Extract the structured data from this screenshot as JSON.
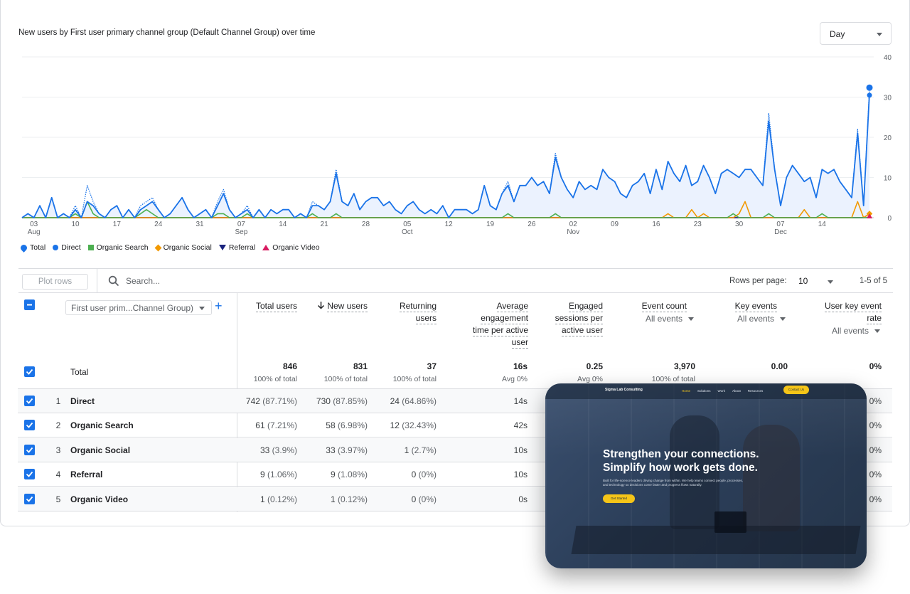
{
  "chart": {
    "title": "New users by First user primary channel group (Default Channel Group) over time",
    "period_select": "Day",
    "y_ticks": [
      "40",
      "30",
      "20",
      "10",
      "0"
    ],
    "x_ticks": [
      {
        "day": "03",
        "month": "Aug"
      },
      {
        "day": "10",
        "month": ""
      },
      {
        "day": "17",
        "month": ""
      },
      {
        "day": "24",
        "month": ""
      },
      {
        "day": "31",
        "month": ""
      },
      {
        "day": "07",
        "month": "Sep"
      },
      {
        "day": "14",
        "month": ""
      },
      {
        "day": "21",
        "month": ""
      },
      {
        "day": "28",
        "month": ""
      },
      {
        "day": "05",
        "month": "Oct"
      },
      {
        "day": "12",
        "month": ""
      },
      {
        "day": "19",
        "month": ""
      },
      {
        "day": "26",
        "month": ""
      },
      {
        "day": "02",
        "month": "Nov"
      },
      {
        "day": "09",
        "month": ""
      },
      {
        "day": "16",
        "month": ""
      },
      {
        "day": "23",
        "month": ""
      },
      {
        "day": "30",
        "month": ""
      },
      {
        "day": "07",
        "month": "Dec"
      },
      {
        "day": "14",
        "month": ""
      }
    ],
    "legend": [
      {
        "label": "Total",
        "color": "#1a73e8",
        "shape": "pin"
      },
      {
        "label": "Direct",
        "color": "#1a73e8",
        "shape": "circle"
      },
      {
        "label": "Organic Search",
        "color": "#4caf50",
        "shape": "square"
      },
      {
        "label": "Organic Social",
        "color": "#f29900",
        "shape": "diamond"
      },
      {
        "label": "Referral",
        "color": "#1a237e",
        "shape": "triangle-down"
      },
      {
        "label": "Organic Video",
        "color": "#d81b60",
        "shape": "triangle-up"
      }
    ]
  },
  "chart_data": {
    "type": "line",
    "x_start": "2024-08-01",
    "ylim": [
      0,
      40
    ],
    "series": [
      {
        "name": "Total",
        "color": "#1a73e8",
        "style": "dotted",
        "values": [
          0,
          1,
          0,
          3,
          0,
          5,
          0,
          1,
          0,
          3,
          0,
          8,
          4,
          1,
          0,
          2,
          3,
          0,
          2,
          0,
          3,
          4,
          5,
          2,
          0,
          1,
          3,
          5,
          2,
          0,
          1,
          2,
          0,
          4,
          7,
          2,
          0,
          1,
          3,
          0,
          2,
          0,
          2,
          1,
          2,
          2,
          0,
          1,
          0,
          4,
          3,
          2,
          4,
          12,
          4,
          3,
          6,
          2,
          4,
          5,
          5,
          3,
          4,
          2,
          1,
          3,
          4,
          2,
          1,
          2,
          1,
          3,
          0,
          2,
          2,
          2,
          1,
          2,
          8,
          3,
          2,
          6,
          9,
          4,
          8,
          8,
          10,
          8,
          9,
          6,
          16,
          10,
          7,
          5,
          9,
          7,
          8,
          7,
          12,
          10,
          9,
          6,
          5,
          8,
          9,
          11,
          6,
          12,
          7,
          14,
          11,
          9,
          13,
          8,
          9,
          13,
          10,
          6,
          11,
          12,
          11,
          10,
          12,
          12,
          10,
          8,
          26,
          12,
          3,
          10,
          13,
          11,
          9,
          10,
          5,
          12,
          11,
          12,
          9,
          7,
          5,
          22,
          3,
          32
        ]
      },
      {
        "name": "Direct",
        "color": "#1a73e8",
        "style": "solid",
        "values": [
          0,
          1,
          0,
          3,
          0,
          5,
          0,
          1,
          0,
          2,
          0,
          4,
          3,
          1,
          0,
          2,
          3,
          0,
          2,
          0,
          2,
          3,
          4,
          2,
          0,
          1,
          3,
          5,
          2,
          0,
          1,
          2,
          0,
          3,
          6,
          2,
          0,
          1,
          2,
          0,
          2,
          0,
          2,
          1,
          2,
          2,
          0,
          1,
          0,
          3,
          3,
          2,
          4,
          11,
          4,
          3,
          6,
          2,
          4,
          5,
          5,
          3,
          4,
          2,
          1,
          3,
          4,
          2,
          1,
          2,
          1,
          3,
          0,
          2,
          2,
          2,
          1,
          2,
          8,
          3,
          2,
          6,
          8,
          4,
          8,
          8,
          10,
          8,
          9,
          6,
          15,
          10,
          7,
          5,
          9,
          7,
          8,
          7,
          12,
          10,
          9,
          6,
          5,
          8,
          9,
          11,
          6,
          12,
          7,
          14,
          11,
          9,
          13,
          8,
          9,
          13,
          10,
          6,
          11,
          12,
          11,
          10,
          12,
          12,
          10,
          8,
          24,
          12,
          3,
          10,
          13,
          11,
          9,
          10,
          5,
          12,
          11,
          12,
          9,
          7,
          5,
          21,
          3,
          31
        ]
      },
      {
        "name": "Organic Search",
        "color": "#4caf50",
        "style": "solid",
        "values": [
          0,
          0,
          0,
          0,
          0,
          0,
          0,
          0,
          0,
          1,
          0,
          4,
          1,
          0,
          0,
          0,
          0,
          0,
          0,
          0,
          1,
          2,
          1,
          0,
          0,
          0,
          0,
          0,
          0,
          0,
          0,
          0,
          0,
          1,
          1,
          0,
          0,
          0,
          1,
          0,
          0,
          0,
          0,
          0,
          0,
          0,
          0,
          0,
          0,
          1,
          0,
          0,
          0,
          1,
          0,
          0,
          0,
          0,
          0,
          0,
          0,
          0,
          0,
          0,
          0,
          0,
          0,
          0,
          0,
          0,
          0,
          0,
          0,
          0,
          0,
          0,
          0,
          0,
          0,
          0,
          0,
          0,
          1,
          0,
          0,
          0,
          0,
          0,
          0,
          0,
          1,
          0,
          0,
          0,
          0,
          0,
          0,
          0,
          0,
          0,
          0,
          0,
          0,
          0,
          0,
          0,
          0,
          0,
          0,
          0,
          0,
          0,
          0,
          0,
          0,
          0,
          0,
          0,
          0,
          0,
          1,
          0,
          0,
          0,
          0,
          0,
          1,
          0,
          0,
          0,
          0,
          0,
          0,
          0,
          0,
          1,
          0,
          0,
          0,
          0,
          0,
          0,
          0,
          0
        ]
      },
      {
        "name": "Organic Social",
        "color": "#f29900",
        "style": "solid",
        "values": [
          0,
          0,
          0,
          0,
          0,
          0,
          0,
          0,
          0,
          0,
          0,
          0,
          0,
          0,
          0,
          0,
          0,
          0,
          0,
          0,
          0,
          0,
          0,
          0,
          0,
          0,
          0,
          0,
          0,
          0,
          0,
          0,
          0,
          0,
          0,
          0,
          0,
          0,
          0,
          0,
          0,
          0,
          0,
          0,
          0,
          0,
          0,
          0,
          0,
          0,
          0,
          0,
          0,
          0,
          0,
          0,
          0,
          0,
          0,
          0,
          0,
          0,
          0,
          0,
          0,
          0,
          0,
          0,
          0,
          0,
          0,
          0,
          0,
          0,
          0,
          0,
          0,
          0,
          0,
          0,
          0,
          0,
          0,
          0,
          0,
          0,
          0,
          0,
          0,
          0,
          0,
          0,
          0,
          0,
          0,
          0,
          0,
          0,
          0,
          0,
          0,
          0,
          0,
          0,
          0,
          0,
          0,
          0,
          0,
          1,
          0,
          0,
          0,
          2,
          0,
          1,
          0,
          0,
          0,
          0,
          0,
          1,
          4,
          0,
          0,
          0,
          0,
          0,
          0,
          0,
          0,
          0,
          2,
          0,
          0,
          0,
          0,
          0,
          0,
          0,
          0,
          4,
          0,
          1
        ]
      },
      {
        "name": "Referral",
        "color": "#1a237e",
        "style": "solid",
        "values": [
          0,
          0,
          0,
          0,
          0,
          0,
          0,
          0,
          0,
          0,
          0,
          0,
          0,
          0,
          0,
          0,
          0,
          0,
          0,
          0,
          0,
          0,
          0,
          0,
          0,
          0,
          0,
          0,
          0,
          0,
          0,
          0,
          0,
          0,
          0,
          0,
          0,
          0,
          0,
          0,
          0,
          0,
          0,
          0,
          0,
          0,
          0,
          0,
          0,
          0,
          0,
          0,
          0,
          0,
          0,
          0,
          0,
          0,
          0,
          0,
          0,
          0,
          0,
          0,
          0,
          0,
          0,
          0,
          0,
          0,
          0,
          0,
          0,
          0,
          0,
          0,
          0,
          0,
          0,
          0,
          0,
          0,
          0,
          0,
          0,
          0,
          0,
          0,
          0,
          0,
          0,
          0,
          0,
          0,
          0,
          0,
          0,
          0,
          0,
          0,
          0,
          0,
          0,
          0,
          0,
          0,
          0,
          0,
          0,
          0,
          0,
          0,
          0,
          0,
          0,
          0,
          0,
          0,
          0,
          0,
          0,
          0,
          0,
          0,
          0,
          0,
          0,
          0,
          0,
          0,
          0,
          0,
          0,
          0,
          0,
          0,
          0,
          0,
          0,
          0,
          0,
          0,
          0,
          0
        ]
      },
      {
        "name": "Organic Video",
        "color": "#d81b60",
        "style": "solid",
        "values": [
          0,
          0,
          0,
          0,
          0,
          0,
          0,
          0,
          0,
          0,
          0,
          0,
          0,
          0,
          0,
          0,
          0,
          0,
          0,
          0,
          0,
          0,
          0,
          0,
          0,
          0,
          0,
          0,
          0,
          0,
          0,
          0,
          0,
          0,
          0,
          0,
          0,
          0,
          0,
          0,
          0,
          0,
          0,
          0,
          0,
          0,
          0,
          0,
          0,
          0,
          0,
          0,
          0,
          0,
          0,
          0,
          0,
          0,
          0,
          0,
          0,
          0,
          0,
          0,
          0,
          0,
          0,
          0,
          0,
          0,
          0,
          0,
          0,
          0,
          0,
          0,
          0,
          0,
          0,
          0,
          0,
          0,
          0,
          0,
          0,
          0,
          0,
          0,
          0,
          0,
          0,
          0,
          0,
          0,
          0,
          0,
          0,
          0,
          0,
          0,
          0,
          0,
          0,
          0,
          0,
          0,
          0,
          0,
          0,
          0,
          0,
          0,
          0,
          0,
          0,
          0,
          0,
          0,
          0,
          0,
          0,
          0,
          0,
          0,
          0,
          0,
          0,
          0,
          0,
          0,
          0,
          0,
          0,
          0,
          0,
          0,
          0,
          0,
          0,
          0,
          0,
          0,
          0,
          1
        ]
      }
    ]
  },
  "toolbar": {
    "plot_rows": "Plot rows",
    "search_placeholder": "Search...",
    "rows_per_page_label": "Rows per page:",
    "rows_per_page_value": "10",
    "range": "1-5 of 5"
  },
  "table": {
    "dimension_select": "First user prim...Channel Group)",
    "columns": [
      {
        "label": "Total users",
        "sub": ""
      },
      {
        "label": "New users",
        "sub": ""
      },
      {
        "label": "Returning users",
        "sub": ""
      },
      {
        "label": "Average engagement time per active user",
        "sub": ""
      },
      {
        "label": "Engaged sessions per active user",
        "sub": ""
      },
      {
        "label": "Event count",
        "sub": "All events"
      },
      {
        "label": "Key events",
        "sub": "All events"
      },
      {
        "label": "User key event rate",
        "sub": "All events"
      }
    ],
    "totals_label": "Total",
    "totals": [
      {
        "value": "846",
        "sub": "100% of total"
      },
      {
        "value": "831",
        "sub": "100% of total"
      },
      {
        "value": "37",
        "sub": "100% of total"
      },
      {
        "value": "16s",
        "sub": "Avg 0%"
      },
      {
        "value": "0.25",
        "sub": "Avg 0%"
      },
      {
        "value": "3,970",
        "sub": "100% of total"
      },
      {
        "value": "0.00",
        "sub": ""
      },
      {
        "value": "0%",
        "sub": ""
      }
    ],
    "rows": [
      {
        "idx": "1",
        "name": "Direct",
        "total_users": "742",
        "total_users_pct": "(87.71%)",
        "new_users": "730",
        "new_users_pct": "(87.85%)",
        "returning": "24",
        "returning_pct": "(64.86%)",
        "avg_time": "14s",
        "rate": "0%"
      },
      {
        "idx": "2",
        "name": "Organic Search",
        "total_users": "61",
        "total_users_pct": "(7.21%)",
        "new_users": "58",
        "new_users_pct": "(6.98%)",
        "returning": "12",
        "returning_pct": "(32.43%)",
        "avg_time": "42s",
        "rate": "0%"
      },
      {
        "idx": "3",
        "name": "Organic Social",
        "total_users": "33",
        "total_users_pct": "(3.9%)",
        "new_users": "33",
        "new_users_pct": "(3.97%)",
        "returning": "1",
        "returning_pct": "(2.7%)",
        "avg_time": "10s",
        "rate": "0%"
      },
      {
        "idx": "4",
        "name": "Referral",
        "total_users": "9",
        "total_users_pct": "(1.06%)",
        "new_users": "9",
        "new_users_pct": "(1.08%)",
        "returning": "0",
        "returning_pct": "(0%)",
        "avg_time": "10s",
        "rate": "0%"
      },
      {
        "idx": "5",
        "name": "Organic Video",
        "total_users": "1",
        "total_users_pct": "(0.12%)",
        "new_users": "1",
        "new_users_pct": "(0.12%)",
        "returning": "0",
        "returning_pct": "(0%)",
        "avg_time": "0s",
        "rate": "0%"
      }
    ]
  },
  "overlay": {
    "logo": "Sigma Lab Consulting",
    "nav": [
      "Home",
      "Solutions",
      "Work",
      "About",
      "Resources"
    ],
    "contact": "Contact Us",
    "headline_1": "Strengthen your connections.",
    "headline_2": "Simplify how work gets done.",
    "body": "Built for life-science leaders driving change from within. We help teams connect people, processes, and technology so decisions come faster and progress flows naturally.",
    "cta": "Get Started"
  }
}
